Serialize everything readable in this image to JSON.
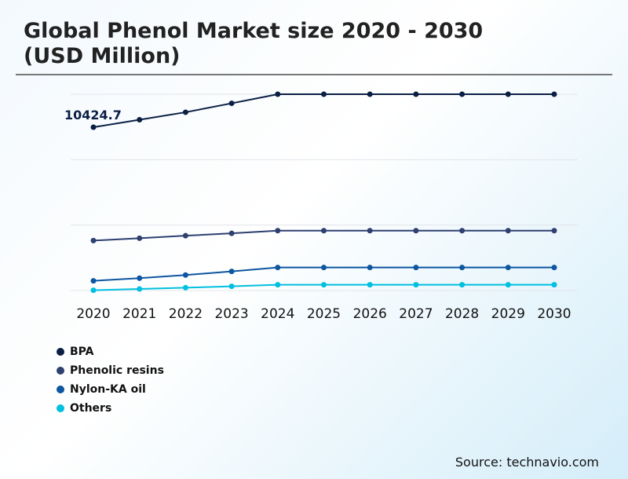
{
  "chart_data": {
    "type": "line",
    "title": "Global Phenol Market size 2020 - 2030 (USD Million)",
    "title_lines": [
      "Global Phenol Market size 2020 - 2030",
      "(USD Million)"
    ],
    "categories": [
      "2020",
      "2021",
      "2022",
      "2023",
      "2024",
      "2025",
      "2026",
      "2027",
      "2028",
      "2029",
      "2030"
    ],
    "series": [
      {
        "name": "BPA",
        "color": "#0b1f45",
        "values": [
          10424.7,
          10900,
          11380,
          11950,
          12530,
          12530,
          12530,
          12530,
          12530,
          12530,
          12530
        ]
      },
      {
        "name": "Phenolic resins",
        "color": "#2e3f70",
        "values": [
          3190,
          3340,
          3500,
          3650,
          3820,
          3820,
          3820,
          3820,
          3820,
          3820,
          3820
        ]
      },
      {
        "name": "Nylon-KA oil",
        "color": "#0d56a0",
        "values": [
          620,
          790,
          990,
          1220,
          1470,
          1470,
          1470,
          1470,
          1470,
          1470,
          1470
        ]
      },
      {
        "name": "Others",
        "color": "#00bfe0",
        "values": [
          20,
          100,
          180,
          270,
          370,
          370,
          370,
          370,
          370,
          370,
          370
        ]
      }
    ],
    "data_labels": [
      {
        "series": "BPA",
        "category": "2020",
        "text": "10424.7"
      }
    ],
    "ylim": [
      0,
      12530
    ],
    "grid": true,
    "legend": "bottom-left",
    "y_axis_labels": false
  },
  "source": "Source: technavio.com"
}
